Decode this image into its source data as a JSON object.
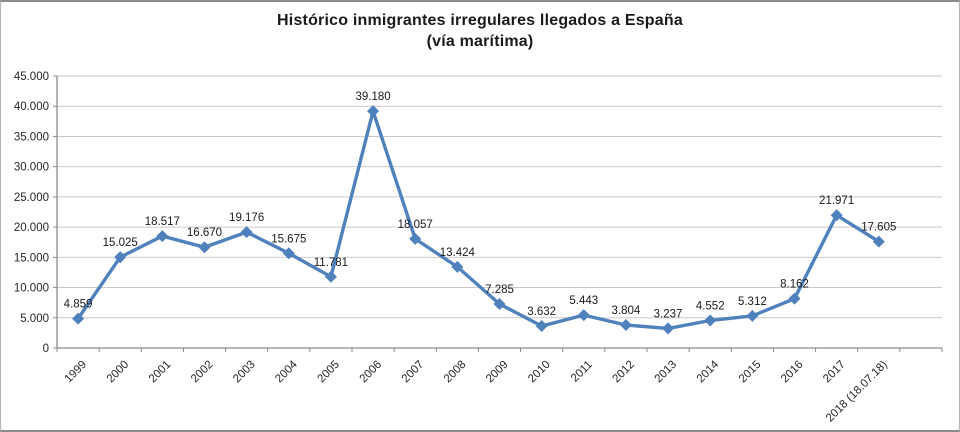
{
  "chart_data": {
    "type": "line",
    "title": "Histórico inmigrantes irregulares llegados a España",
    "subtitle": "(vía marítima)",
    "categories": [
      "1999",
      "2000",
      "2001",
      "2002",
      "2003",
      "2004",
      "2005",
      "2006",
      "2007",
      "2008",
      "2009",
      "2010",
      "2011",
      "2012",
      "2013",
      "2014",
      "2015",
      "2016",
      "2017",
      "2018 (18.07.18)"
    ],
    "values": [
      4859,
      15025,
      18517,
      16670,
      19176,
      15675,
      11781,
      39180,
      18057,
      13424,
      7285,
      3632,
      5443,
      3804,
      3237,
      4552,
      5312,
      8162,
      21971,
      17605
    ],
    "point_labels": [
      "4.859",
      "15.025",
      "18.517",
      "16.670",
      "19.176",
      "15.675",
      "11.781",
      "39.180",
      "18.057",
      "13.424",
      "7.285",
      "3.632",
      "5.443",
      "3.804",
      "3.237",
      "4.552",
      "5.312",
      "8.162",
      "21.971",
      "17.605"
    ],
    "ylim": [
      0,
      45000
    ],
    "ytick_step": 5000,
    "ytick_labels": [
      "0",
      "5.000",
      "10.000",
      "15.000",
      "20.000",
      "25.000",
      "30.000",
      "35.000",
      "40.000",
      "45.000"
    ],
    "xlabel": "",
    "ylabel": "",
    "grid": "horizontal",
    "legend": "none",
    "x_slots": 21,
    "series_color": "#4F81BD",
    "marker": "diamond",
    "gridline_color": "#c9c9c9",
    "axis_color": "#8c8c8c",
    "text_color": "#262626"
  }
}
